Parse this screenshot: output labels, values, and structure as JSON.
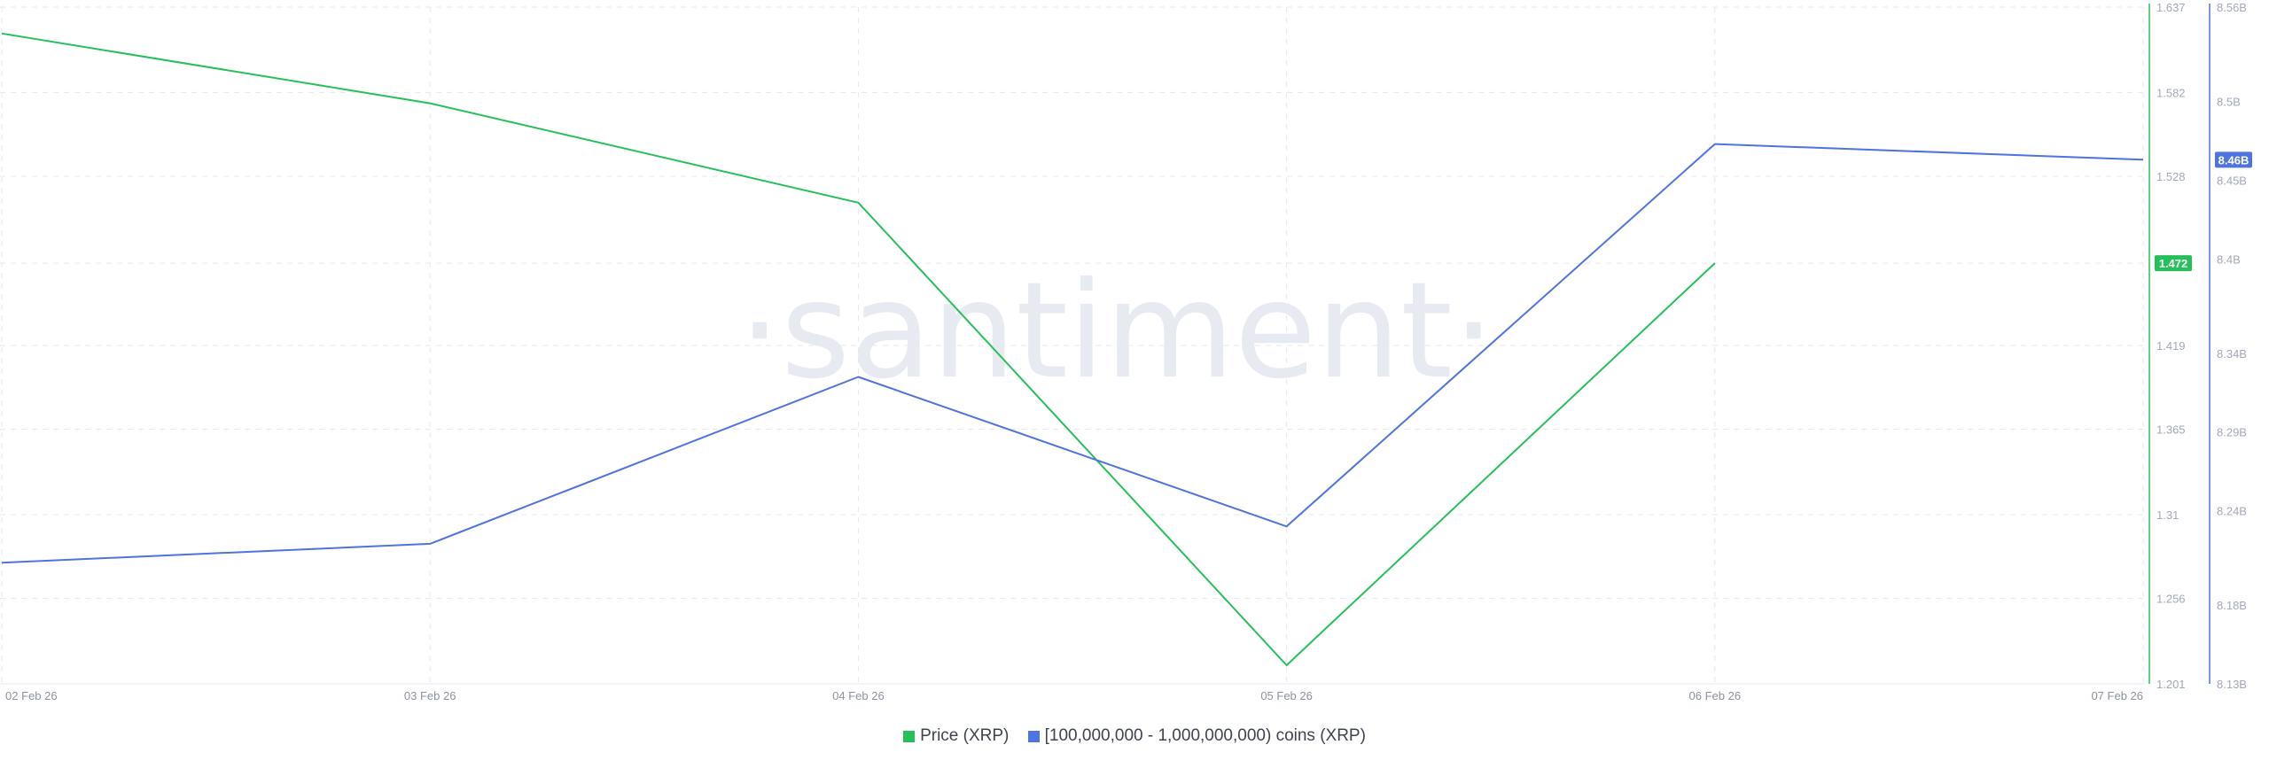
{
  "chart_data": {
    "type": "line",
    "watermark": "·santiment·",
    "x": [
      "02 Feb 26",
      "03 Feb 26",
      "04 Feb 26",
      "05 Feb 26",
      "06 Feb 26",
      "07 Feb 26"
    ],
    "xtick_labels": [
      "02 Feb 26",
      "03 Feb 26",
      "04 Feb 26",
      "05 Feb 26",
      "06 Feb 26",
      "07 Feb 26"
    ],
    "series": [
      {
        "name": "Price (XRP)",
        "color": "#26c05a",
        "axis": "left",
        "x": [
          "02 Feb 26",
          "03 Feb 26",
          "04 Feb 26",
          "05 Feb 26",
          "06 Feb 26"
        ],
        "values": [
          1.62,
          1.575,
          1.511,
          1.213,
          1.472
        ],
        "last_label": "1.472"
      },
      {
        "name": "[100,000,000 - 1,000,000,000) coins (XRP)",
        "color": "#4f73e0",
        "axis": "right",
        "x": [
          "02 Feb 26",
          "03 Feb 26",
          "04 Feb 26",
          "05 Feb 26",
          "06 Feb 26",
          "07 Feb 26"
        ],
        "values": [
          8.207,
          8.219,
          8.325,
          8.23,
          8.473,
          8.463
        ],
        "last_label": "8.46B"
      }
    ],
    "y_left": {
      "ylim": [
        1.201,
        1.637
      ],
      "ticks": [
        1.637,
        1.582,
        1.528,
        1.472,
        1.419,
        1.365,
        1.31,
        1.256,
        1.201
      ],
      "tick_labels": [
        "1.637",
        "1.582",
        "1.528",
        "",
        "1.419",
        "1.365",
        "1.31",
        "1.256",
        "1.201"
      ]
    },
    "y_right": {
      "ylim": [
        8.13,
        8.56
      ],
      "ticks": [
        8.56,
        8.5,
        8.45,
        8.4,
        8.34,
        8.29,
        8.24,
        8.18,
        8.13
      ],
      "tick_labels": [
        "8.56B",
        "8.5B",
        "8.45B",
        "8.4B",
        "8.34B",
        "8.29B",
        "8.24B",
        "8.18B",
        "8.13B"
      ]
    },
    "grid": true,
    "legend_position": "bottom-center"
  }
}
